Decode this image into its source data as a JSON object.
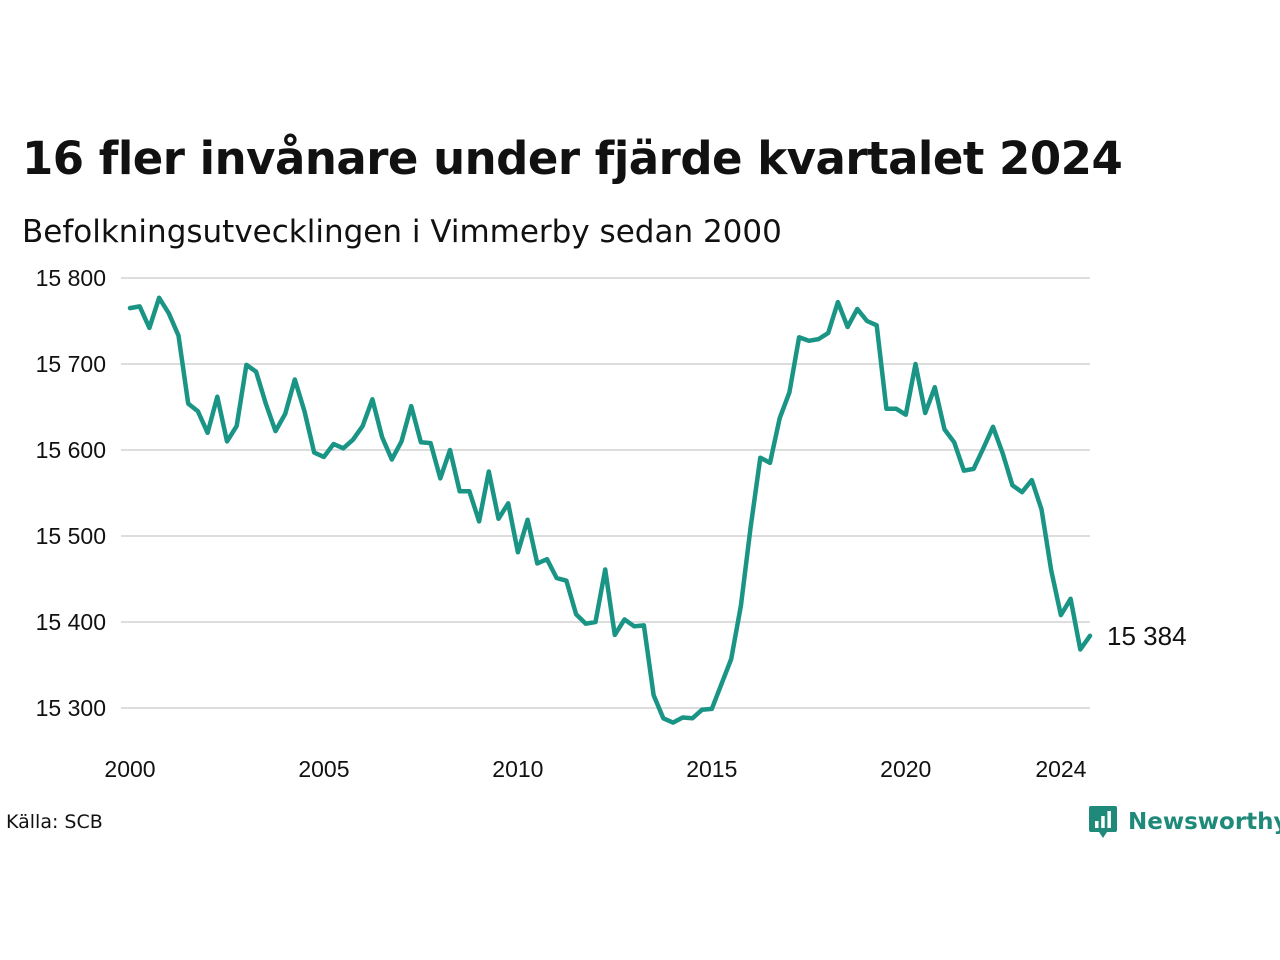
{
  "header": {
    "title": "16 fler invånare under fjärde kvartalet 2024",
    "subtitle": "Befolkningsutvecklingen i Vimmerby sedan 2000"
  },
  "footer": {
    "source": "Källa: SCB",
    "brand": "Newsworthy"
  },
  "colors": {
    "line": "#1a9585",
    "grid": "#dddddd",
    "brand": "#1f8a7a"
  },
  "chart_data": {
    "type": "line",
    "title": "16 fler invånare under fjärde kvartalet 2024",
    "subtitle": "Befolkningsutvecklingen i Vimmerby sedan 2000",
    "xlabel": "",
    "ylabel": "",
    "xlim": [
      2000.0,
      2024.75
    ],
    "ylim": [
      15250,
      15800
    ],
    "grid": "horizontal",
    "legend": "none",
    "y_ticks": [
      15300,
      15400,
      15500,
      15600,
      15700,
      15800
    ],
    "y_tick_labels": [
      "15 300",
      "15 400",
      "15 500",
      "15 600",
      "15 700",
      "15 800"
    ],
    "x_ticks": [
      2000,
      2005,
      2010,
      2015,
      2020,
      2024
    ],
    "x_tick_labels": [
      "2000",
      "2005",
      "2010",
      "2015",
      "2020",
      "2024"
    ],
    "end_label": "15 384",
    "series": [
      {
        "x": [
          2000.0,
          2000.25,
          2000.5,
          2000.75,
          2001.0,
          2001.25,
          2001.5,
          2001.75,
          2002.0,
          2002.25,
          2002.5,
          2002.75,
          2003.0,
          2003.25,
          2003.5,
          2003.75,
          2004.0,
          2004.25,
          2004.5,
          2004.75,
          2005.0,
          2005.25,
          2005.5,
          2005.75,
          2006.0,
          2006.25,
          2006.5,
          2006.75,
          2007.0,
          2007.25,
          2007.5,
          2007.75,
          2008.0,
          2008.25,
          2008.5,
          2008.75,
          2009.0,
          2009.25,
          2009.5,
          2009.75,
          2010.0,
          2010.25,
          2010.5,
          2010.75,
          2011.0,
          2011.25,
          2011.5,
          2011.75,
          2012.0,
          2012.25,
          2012.5,
          2012.75,
          2013.0,
          2013.25,
          2013.5,
          2013.75,
          2014.0,
          2014.25,
          2014.5,
          2014.75,
          2015.0,
          2015.25,
          2015.5,
          2015.75,
          2016.0,
          2016.25,
          2016.5,
          2016.75,
          2017.0,
          2017.25,
          2017.5,
          2017.75,
          2018.0,
          2018.25,
          2018.5,
          2018.75,
          2019.0,
          2019.25,
          2019.5,
          2019.75,
          2020.0,
          2020.25,
          2020.5,
          2020.75,
          2021.0,
          2021.25,
          2021.5,
          2021.75,
          2022.0,
          2022.25,
          2022.5,
          2022.75,
          2023.0,
          2023.25,
          2023.5,
          2023.75,
          2024.0,
          2024.25,
          2024.5,
          2024.75
        ],
        "y": [
          15765,
          15767,
          15742,
          15777,
          15759,
          15733,
          15654,
          15645,
          15620,
          15662,
          15610,
          15628,
          15699,
          15691,
          15654,
          15622,
          15642,
          15682,
          15645,
          15597,
          15592,
          15607,
          15602,
          15612,
          15628,
          15659,
          15615,
          15589,
          15610,
          15651,
          15609,
          15608,
          15567,
          15600,
          15552,
          15552,
          15517,
          15575,
          15520,
          15538,
          15481,
          15519,
          15468,
          15473,
          15451,
          15448,
          15409,
          15398,
          15400,
          15461,
          15385,
          15403,
          15395,
          15396,
          15315,
          15288,
          15283,
          15289,
          15288,
          15298,
          15299,
          15328,
          15357,
          15419,
          15510,
          15591,
          15585,
          15637,
          15667,
          15731,
          15727,
          15729,
          15736,
          15772,
          15743,
          15764,
          15750,
          15745,
          15648,
          15648,
          15641,
          15700,
          15643,
          15673,
          15624,
          15609,
          15576,
          15578,
          15602,
          15627,
          15596,
          15559,
          15551,
          15565,
          15531,
          15460,
          15408,
          15427,
          15368,
          15384
        ]
      }
    ]
  }
}
